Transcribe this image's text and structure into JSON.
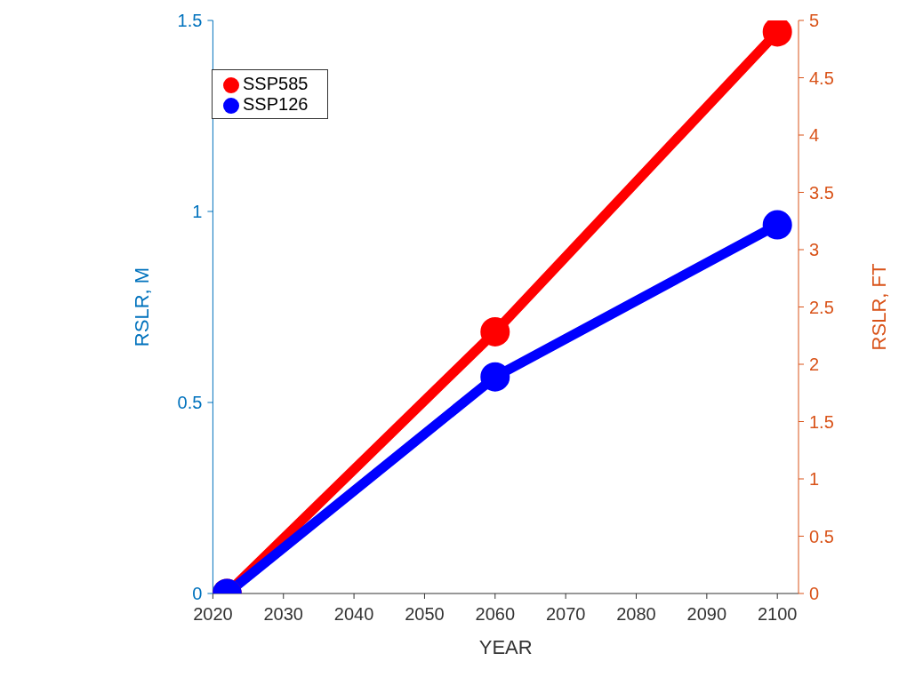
{
  "chart_data": {
    "type": "line",
    "xlabel": "YEAR",
    "ylabel": "RSLR, M",
    "y2label": "RSLR, FT",
    "x": [
      2022,
      2060,
      2100
    ],
    "series": [
      {
        "name": "SSP585",
        "color": "#ff0000",
        "values": [
          0,
          0.685,
          1.47
        ]
      },
      {
        "name": "SSP126",
        "color": "#0000ff",
        "values": [
          0,
          0.567,
          0.965
        ]
      }
    ],
    "xlim": [
      2020,
      2103
    ],
    "xticks": [
      2020,
      2030,
      2040,
      2050,
      2060,
      2070,
      2080,
      2090,
      2100
    ],
    "ylim": [
      0,
      1.5
    ],
    "yticks": [
      0,
      0.5,
      1,
      1.5
    ],
    "y2lim": [
      0,
      5
    ],
    "y2ticks": [
      0,
      0.5,
      1,
      1.5,
      2,
      2.5,
      3,
      3.5,
      4,
      4.5,
      5
    ],
    "legend": "top left",
    "marker": "circle",
    "line_style": "solid"
  }
}
